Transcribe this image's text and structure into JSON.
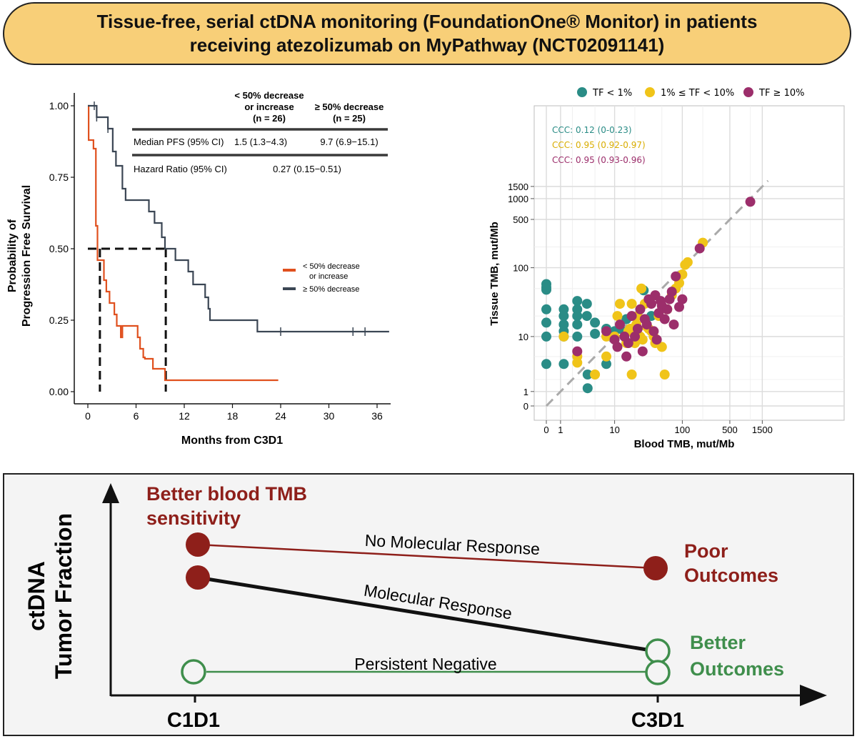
{
  "title": {
    "line1": "Tissue-free, serial ctDNA monitoring (FoundationOne® Monitor) in patients",
    "line2": "receiving atezolizumab on MyPathway (NCT02091141)"
  },
  "colors": {
    "kmA": "#e0501e",
    "kmB": "#3b4654",
    "tfLow": "#2a8c86",
    "tfMid": "#f0c419",
    "tfHigh": "#9c2e6b",
    "poor": "#8e1f1a",
    "better": "#3f8e4c"
  },
  "chart_data": [
    {
      "type": "line",
      "chart": "kaplan-meier",
      "xlabel": "Months from C3D1",
      "ylabel": [
        "Probability of",
        "Progression Free Survival"
      ],
      "xlim": [
        -1,
        38
      ],
      "ylim": [
        0,
        1.0
      ],
      "xticks": [
        0,
        6,
        12,
        18,
        24,
        30,
        36
      ],
      "yticks": [
        0,
        0.25,
        0.5,
        0.75,
        1.0
      ],
      "ytick_labels": [
        "0.00",
        "0.25",
        "0.50",
        "0.75",
        "1.00"
      ],
      "series": [
        {
          "name": "< 50% decrease or increase",
          "legend_lines": [
            "< 50% decrease",
            "or increase"
          ],
          "steps": [
            [
              0,
              1.0
            ],
            [
              0.1,
              0.88
            ],
            [
              0.7,
              0.85
            ],
            [
              1.0,
              0.58
            ],
            [
              1.2,
              0.46
            ],
            [
              2.0,
              0.39
            ],
            [
              2.3,
              0.35
            ],
            [
              2.7,
              0.31
            ],
            [
              3.3,
              0.27
            ],
            [
              3.6,
              0.23
            ],
            [
              4.1,
              0.19
            ],
            [
              4.3,
              0.23
            ],
            [
              5.0,
              0.23
            ],
            [
              6.2,
              0.19
            ],
            [
              6.5,
              0.15
            ],
            [
              6.9,
              0.12
            ],
            [
              7.1,
              0.115
            ],
            [
              8.1,
              0.08
            ],
            [
              9.6,
              0.04
            ],
            [
              23.7,
              0.04
            ]
          ],
          "end": 23.7,
          "censor": []
        },
        {
          "name": "≥ 50% decrease",
          "legend_lines": [
            "≥ 50% decrease"
          ],
          "steps": [
            [
              0,
              1.0
            ],
            [
              0.8,
              1.0
            ],
            [
              1.1,
              0.96
            ],
            [
              2.5,
              0.92
            ],
            [
              3.1,
              0.84
            ],
            [
              3.5,
              0.79
            ],
            [
              4.3,
              0.71
            ],
            [
              4.7,
              0.67
            ],
            [
              7.6,
              0.63
            ],
            [
              8.3,
              0.59
            ],
            [
              9.2,
              0.54
            ],
            [
              9.6,
              0.5
            ],
            [
              10.9,
              0.46
            ],
            [
              12.5,
              0.42
            ],
            [
              13.1,
              0.375
            ],
            [
              14.6,
              0.33
            ],
            [
              15.0,
              0.29
            ],
            [
              15.2,
              0.25
            ],
            [
              21.1,
              0.21
            ],
            [
              37.5,
              0.21
            ]
          ],
          "end": 37.5,
          "censor": [
            [
              0.8,
              1.0
            ],
            [
              1.1,
              0.96
            ],
            [
              2.5,
              0.92
            ],
            [
              24.0,
              0.21
            ],
            [
              33.0,
              0.21
            ],
            [
              34.5,
              0.21
            ]
          ]
        }
      ],
      "median_lines": [
        1.5,
        9.7
      ],
      "table": {
        "col1_lines": [
          "< 50% decrease",
          "or increase"
        ],
        "col1_n": "(n = 26)",
        "col2_line": "≥ 50% decrease",
        "col2_n": "(n = 25)",
        "row1_label": "Median PFS (95% CI)",
        "row1_v1": "1.5 (1.3−4.3)",
        "row1_v2": "9.7 (6.9−15.1)",
        "row2_label": "Hazard Ratio (95% CI)",
        "row2_v": "0.27 (0.15−0.51)"
      }
    },
    {
      "type": "scatter",
      "xlabel": "Blood TMB, mut/Mb",
      "ylabel": "Tissue TMB, mut/Mb",
      "scale": "pseudo-log",
      "xticks": [
        0,
        1,
        10,
        100,
        500,
        1500
      ],
      "yticks": [
        0,
        1,
        10,
        100,
        500,
        1000,
        1500
      ],
      "legend": [
        "TF < 1%",
        "1% ≤ TF < 10%",
        "TF ≥ 10%"
      ],
      "ccc": [
        "CCC: 0.12 (0-0.23)",
        "CCC: 0.95 (0.92-0.97)",
        "CCC: 0.95 (0.93-0.96)"
      ],
      "series": [
        {
          "name": "TF < 1%",
          "points": [
            [
              0,
              58
            ],
            [
              0,
              52
            ],
            [
              0,
              48
            ],
            [
              0,
              25
            ],
            [
              0,
              16
            ],
            [
              0,
              10
            ],
            [
              0,
              3.8
            ],
            [
              1.25,
              25
            ],
            [
              1.25,
              20
            ],
            [
              1.25,
              15
            ],
            [
              1.25,
              12
            ],
            [
              1.25,
              10
            ],
            [
              1.25,
              3.8
            ],
            [
              2.5,
              33
            ],
            [
              2.5,
              25
            ],
            [
              2.5,
              20
            ],
            [
              2.5,
              15
            ],
            [
              2.5,
              10
            ],
            [
              3.7,
              30
            ],
            [
              3.7,
              20
            ],
            [
              5,
              16
            ],
            [
              5,
              11
            ],
            [
              3.8,
              2.5
            ],
            [
              3.8,
              1.25
            ],
            [
              7.5,
              13
            ],
            [
              7.5,
              3.8
            ],
            [
              10,
              12
            ],
            [
              12,
              13
            ],
            [
              15,
              18
            ],
            [
              20,
              12
            ],
            [
              27,
              47
            ],
            [
              35,
              20
            ],
            [
              22,
              9
            ]
          ]
        },
        {
          "name": "1% ≤ TF < 10%",
          "points": [
            [
              1.25,
              10
            ],
            [
              2.5,
              5
            ],
            [
              2.5,
              4
            ],
            [
              5,
              2.5
            ],
            [
              7.5,
              10
            ],
            [
              7.5,
              5
            ],
            [
              10,
              10
            ],
            [
              11,
              20
            ],
            [
              12,
              30
            ],
            [
              15,
              8
            ],
            [
              16,
              12
            ],
            [
              17,
              13
            ],
            [
              18,
              2.5
            ],
            [
              18,
              30
            ],
            [
              20,
              8
            ],
            [
              21,
              15
            ],
            [
              22,
              20
            ],
            [
              24,
              10
            ],
            [
              25,
              50
            ],
            [
              26,
              9
            ],
            [
              28,
              30
            ],
            [
              30,
              14
            ],
            [
              32,
              13
            ],
            [
              35,
              12
            ],
            [
              38,
              10
            ],
            [
              40,
              8
            ],
            [
              45,
              20
            ],
            [
              50,
              7
            ],
            [
              55,
              2.5
            ],
            [
              60,
              25
            ],
            [
              70,
              40
            ],
            [
              80,
              50
            ],
            [
              90,
              60
            ],
            [
              100,
              80
            ],
            [
              110,
              110
            ],
            [
              120,
              120
            ],
            [
              200,
              230
            ]
          ]
        },
        {
          "name": "TF ≥ 10%",
          "points": [
            [
              2.5,
              6
            ],
            [
              7.5,
              12
            ],
            [
              10,
              9
            ],
            [
              11,
              7
            ],
            [
              12,
              15
            ],
            [
              14,
              10
            ],
            [
              15,
              5
            ],
            [
              16,
              8
            ],
            [
              18,
              20
            ],
            [
              20,
              10
            ],
            [
              22,
              13
            ],
            [
              24,
              25
            ],
            [
              26,
              6
            ],
            [
              28,
              18
            ],
            [
              30,
              15
            ],
            [
              32,
              35
            ],
            [
              35,
              30
            ],
            [
              38,
              12
            ],
            [
              40,
              40
            ],
            [
              42,
              9
            ],
            [
              45,
              22
            ],
            [
              48,
              33
            ],
            [
              50,
              28
            ],
            [
              55,
              18
            ],
            [
              60,
              25
            ],
            [
              65,
              35
            ],
            [
              70,
              45
            ],
            [
              75,
              15
            ],
            [
              80,
              75
            ],
            [
              90,
              27
            ],
            [
              100,
              35
            ],
            [
              180,
              190
            ],
            [
              1000,
              900
            ]
          ]
        }
      ]
    }
  ],
  "schematic": {
    "ylabel": [
      "ctDNA",
      "Tumor Fraction"
    ],
    "x1": "C1D1",
    "x2": "C3D1",
    "top_label": [
      "Better blood TMB",
      "sensitivity"
    ],
    "no_response": "No Molecular Response",
    "response": "Molecular Response",
    "persistent": "Persistent Negative",
    "poor": [
      "Poor",
      "Outcomes"
    ],
    "better": [
      "Better",
      "Outcomes"
    ]
  }
}
